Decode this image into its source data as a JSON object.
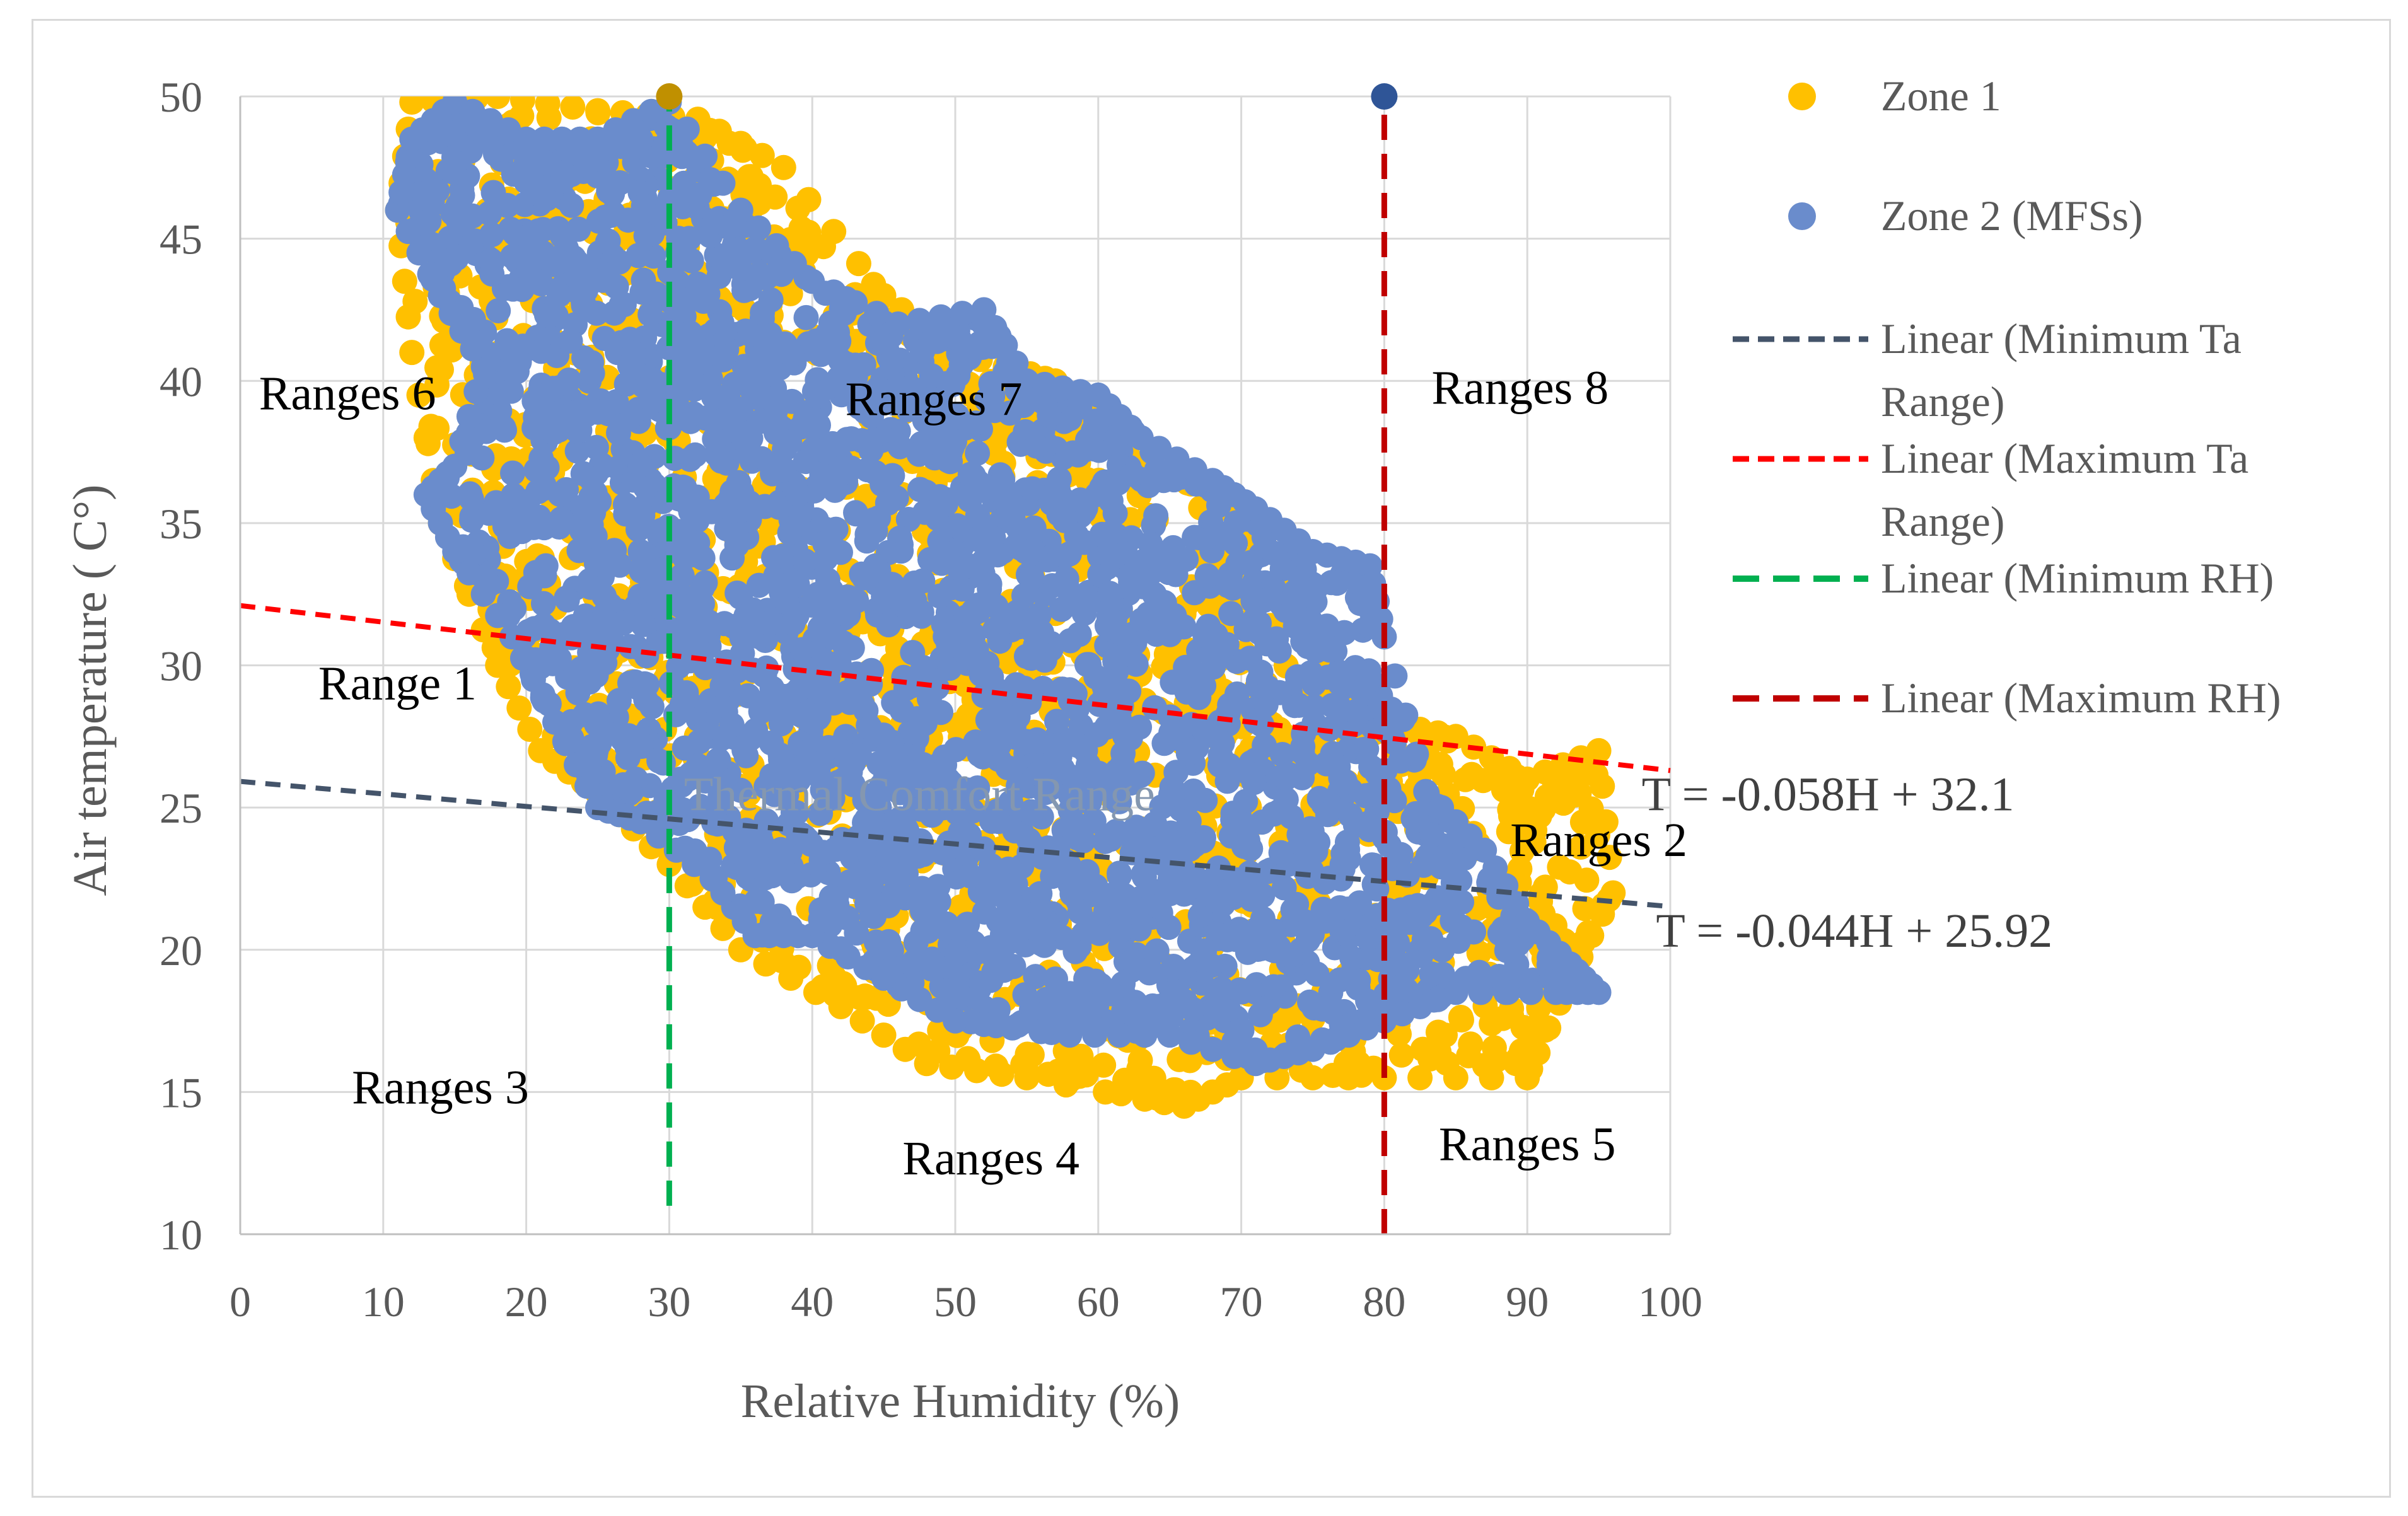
{
  "chart_data": {
    "type": "scatter",
    "title": "",
    "xlabel": "Relative Humidity (%)",
    "ylabel": "Air temperature ( C°)",
    "xlim": [
      0,
      100
    ],
    "ylim": [
      10,
      50
    ],
    "x_ticks": [
      "0",
      "10",
      "20",
      "30",
      "40",
      "50",
      "60",
      "70",
      "80",
      "90",
      "100"
    ],
    "y_ticks": [
      "10",
      "15",
      "20",
      "25",
      "30",
      "35",
      "40",
      "45",
      "50"
    ],
    "grid": true,
    "legend_position": "right",
    "series": [
      {
        "name": "Zone 1",
        "kind": "scatter",
        "color": "#ffc000",
        "cloud_outline": [
          [
            12,
            49.8
          ],
          [
            18,
            50
          ],
          [
            25,
            49.5
          ],
          [
            32,
            49.2
          ],
          [
            38,
            47.5
          ],
          [
            45,
            43
          ],
          [
            50,
            41
          ],
          [
            57,
            40
          ],
          [
            62,
            37.5
          ],
          [
            68,
            36
          ],
          [
            72,
            34
          ],
          [
            76,
            30
          ],
          [
            80,
            28
          ],
          [
            85,
            27.5
          ],
          [
            90,
            26
          ],
          [
            95,
            27
          ],
          [
            96,
            22
          ],
          [
            93,
            19
          ],
          [
            90,
            15.5
          ],
          [
            80,
            15.5
          ],
          [
            70,
            15.5
          ],
          [
            66,
            14.5
          ],
          [
            55,
            15.5
          ],
          [
            48,
            16
          ],
          [
            42,
            18
          ],
          [
            35,
            20
          ],
          [
            30,
            23
          ],
          [
            25,
            25.5
          ],
          [
            21,
            27
          ],
          [
            18,
            30
          ],
          [
            14,
            35
          ],
          [
            12,
            41
          ],
          [
            11,
            46
          ]
        ]
      },
      {
        "name": "Zone 2 (MFSs)",
        "kind": "scatter",
        "color": "#6a8ccc",
        "cloud_outline": [
          [
            11,
            46
          ],
          [
            12,
            48.5
          ],
          [
            15,
            49.8
          ],
          [
            20,
            48.5
          ],
          [
            25,
            48.5
          ],
          [
            30,
            49.8
          ],
          [
            35,
            46
          ],
          [
            40,
            43.5
          ],
          [
            46,
            42
          ],
          [
            52,
            42.5
          ],
          [
            55,
            40
          ],
          [
            60,
            39.5
          ],
          [
            63,
            38
          ],
          [
            68,
            36.5
          ],
          [
            71,
            35.5
          ],
          [
            75,
            34
          ],
          [
            79,
            33.5
          ],
          [
            80,
            31
          ],
          [
            83,
            25.5
          ],
          [
            87,
            23.5
          ],
          [
            90,
            21
          ],
          [
            93,
            19.5
          ],
          [
            95,
            18.5
          ],
          [
            92,
            18.5
          ],
          [
            85,
            18.5
          ],
          [
            80,
            17.5
          ],
          [
            75,
            16.5
          ],
          [
            71,
            16
          ],
          [
            65,
            17
          ],
          [
            58,
            17
          ],
          [
            50,
            17.5
          ],
          [
            45,
            19
          ],
          [
            40,
            20.5
          ],
          [
            36,
            20.5
          ],
          [
            33,
            22.5
          ],
          [
            28,
            24.5
          ],
          [
            25,
            25
          ],
          [
            22,
            28
          ],
          [
            19,
            31
          ],
          [
            15,
            34
          ],
          [
            13,
            36
          ],
          [
            15,
            37
          ],
          [
            17,
            40.5
          ],
          [
            14,
            43
          ]
        ]
      },
      {
        "name": "Linear (Minimum Ta Range)",
        "kind": "line",
        "color": "#44546a",
        "x": [
          0,
          100
        ],
        "y": [
          25.92,
          21.52
        ]
      },
      {
        "name": "Linear (Maximum Ta Range)",
        "kind": "line",
        "color": "#ff0000",
        "x": [
          0,
          100
        ],
        "y": [
          32.1,
          26.3
        ]
      },
      {
        "name": "Linear (Minimum RH)",
        "kind": "line",
        "color": "#00b050",
        "x": [
          30,
          30
        ],
        "y": [
          11,
          50
        ]
      },
      {
        "name": "Linear (Maximum RH)",
        "kind": "line",
        "color": "#c00000",
        "x": [
          80,
          80
        ],
        "y": [
          10,
          50
        ]
      }
    ],
    "marker_points": [
      {
        "x": 30,
        "y": 50,
        "color": "#c09000"
      },
      {
        "x": 80,
        "y": 50,
        "color": "#2f5597"
      }
    ],
    "legend": [
      {
        "label": "Zone 1",
        "marker": "dot",
        "color": "#ffc000"
      },
      {
        "label": "Zone 2 (MFSs)",
        "marker": "dot",
        "color": "#6a8ccc"
      },
      {
        "label": "Linear (Minimum Ta Range)",
        "label_lines": [
          "Linear (Minimum Ta",
          "Range)"
        ],
        "marker": "short-dash",
        "color": "#44546a"
      },
      {
        "label": "Linear (Maximum Ta Range)",
        "label_lines": [
          "Linear (Maximum Ta",
          "Range)"
        ],
        "marker": "short-dash",
        "color": "#ff0000"
      },
      {
        "label": "Linear (Minimum RH)",
        "label_lines": [
          "Linear (Minimum RH)"
        ],
        "marker": "long-dash",
        "color": "#00b050"
      },
      {
        "label": "Linear (Maximum RH)",
        "label_lines": [
          "Linear (Maximum RH)"
        ],
        "marker": "long-dash",
        "color": "#c00000"
      }
    ],
    "annotations": [
      {
        "text": "Ranges 6",
        "x": 7.5,
        "y": 39
      },
      {
        "text": "Ranges 7",
        "x": 48.5,
        "y": 38.8
      },
      {
        "text": "Ranges 8",
        "x": 89.5,
        "y": 39.2
      },
      {
        "text": "Range 1",
        "x": 11,
        "y": 28.8
      },
      {
        "text": "Thermal Comfort  Range",
        "x": 47.5,
        "y": 24.9,
        "color": "#8497b0"
      },
      {
        "text": "Ranges 2",
        "x": 95,
        "y": 23.3
      },
      {
        "text": "Ranges 3",
        "x": 14,
        "y": 14.6
      },
      {
        "text": "Ranges 4",
        "x": 52.5,
        "y": 12.1
      },
      {
        "text": "Ranges 5",
        "x": 90,
        "y": 12.6
      },
      {
        "text": "T = -0.058H + 32.1",
        "x": 98,
        "y": 24.9,
        "color": "#404040",
        "anchor": "start"
      },
      {
        "text": "T = -0.044H + 25.92",
        "x": 99,
        "y": 20.1,
        "color": "#404040",
        "anchor": "start"
      }
    ]
  }
}
